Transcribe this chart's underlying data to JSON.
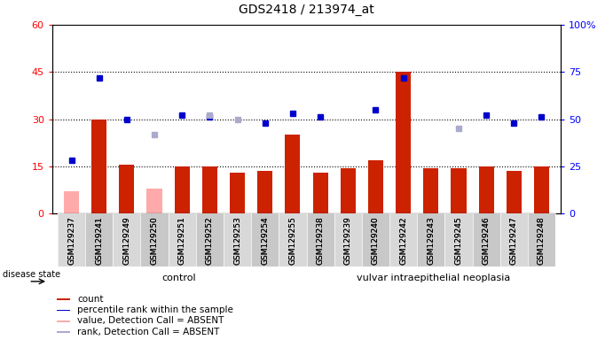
{
  "title": "GDS2418 / 213974_at",
  "samples": [
    "GSM129237",
    "GSM129241",
    "GSM129249",
    "GSM129250",
    "GSM129251",
    "GSM129252",
    "GSM129253",
    "GSM129254",
    "GSM129255",
    "GSM129238",
    "GSM129239",
    "GSM129240",
    "GSM129242",
    "GSM129243",
    "GSM129245",
    "GSM129246",
    "GSM129247",
    "GSM129248"
  ],
  "control_count": 9,
  "disease_count": 9,
  "count_values": [
    7,
    30,
    15.5,
    8,
    15,
    15,
    13,
    13.5,
    25,
    13,
    14.5,
    17,
    45,
    14.5,
    14.5,
    15,
    13.5,
    15
  ],
  "count_absent": [
    true,
    false,
    false,
    true,
    false,
    false,
    false,
    false,
    false,
    false,
    false,
    false,
    false,
    false,
    false,
    false,
    false,
    false
  ],
  "percentile_values": [
    28,
    72,
    50,
    null,
    52,
    51,
    null,
    48,
    53,
    51,
    null,
    55,
    72,
    null,
    null,
    52,
    48,
    51
  ],
  "rank_absent": [
    null,
    null,
    null,
    42,
    null,
    52,
    50,
    null,
    null,
    null,
    null,
    null,
    null,
    null,
    45,
    null,
    null,
    null
  ],
  "ylim_left": [
    0,
    60
  ],
  "ylim_right": [
    0,
    100
  ],
  "yticks_left": [
    0,
    15,
    30,
    45,
    60
  ],
  "yticks_right": [
    0,
    25,
    50,
    75,
    100
  ],
  "bar_color_red": "#cc2200",
  "bar_color_pink": "#ffaaaa",
  "dot_color_blue": "#0000cc",
  "dot_color_lightblue": "#aaaacc",
  "bg_plot": "#ffffff",
  "bg_xtick": "#d0d0d0",
  "bg_group": "#99ee99",
  "hline_y": [
    15,
    30,
    45
  ],
  "legend_entries": [
    "count",
    "percentile rank within the sample",
    "value, Detection Call = ABSENT",
    "rank, Detection Call = ABSENT"
  ],
  "legend_colors": [
    "#cc2200",
    "#0000cc",
    "#ffaaaa",
    "#aaaacc"
  ],
  "disease_state_label": "disease state",
  "group1_label": "control",
  "group2_label": "vulvar intraepithelial neoplasia"
}
